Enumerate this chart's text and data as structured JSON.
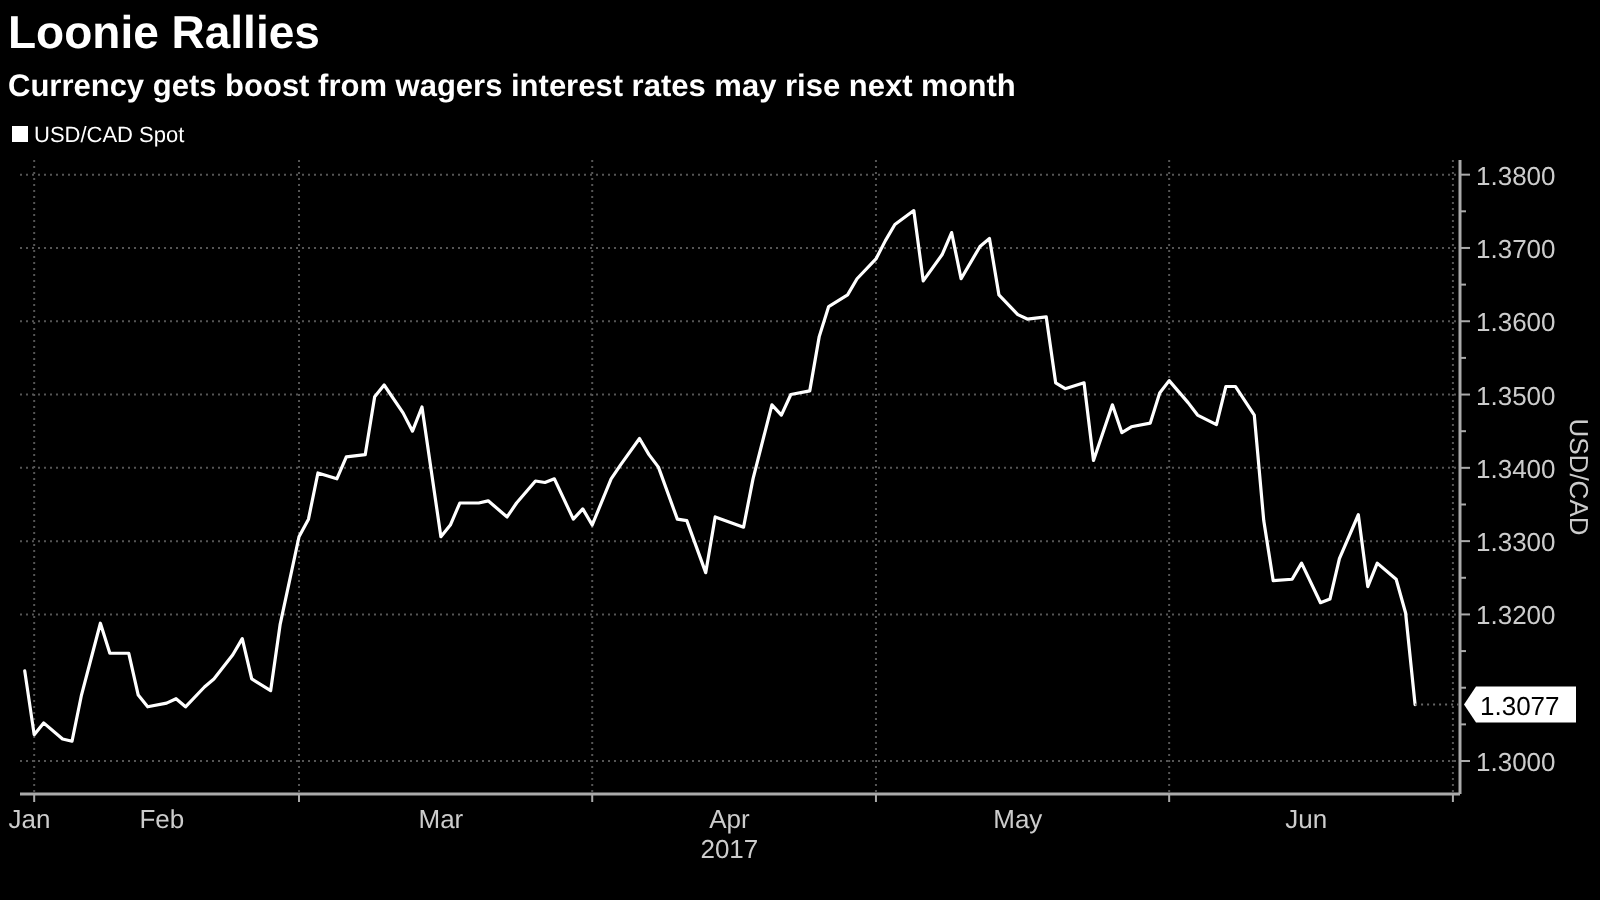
{
  "chart_data": {
    "type": "line",
    "title": "Loonie Rallies",
    "subtitle": "Currency gets boost from wagers interest rates may rise next month",
    "ylabel": "USD/CAD",
    "legend": "top left",
    "grid": true,
    "marker": "none",
    "line_style": "solid",
    "annotations": [
      {
        "text": "1.3077",
        "x": "2017-06-27",
        "y": 1.3077
      }
    ],
    "xlim": [
      "2017-01-30T12:00",
      "2017-07-01T18:00"
    ],
    "xticks": [
      {
        "value": "2017-02-01",
        "label": null
      },
      {
        "value": "2017-03-01",
        "label": null
      },
      {
        "value": "2017-04-01",
        "label": null
      },
      {
        "value": "2017-05-01",
        "label": null
      },
      {
        "value": "2017-06-01",
        "label": null
      },
      {
        "value": "2017-07-01",
        "label": null
      },
      {
        "value": "2017-01-31T12:00",
        "label": "Jan"
      },
      {
        "value": "2017-02-14T12:00",
        "label": "Feb"
      },
      {
        "value": "2017-03-16",
        "label": "Mar"
      },
      {
        "value": "2017-04-15T12:00",
        "label": "Apr\n2017"
      },
      {
        "value": "2017-05-16",
        "label": "May"
      },
      {
        "value": "2017-06-15T12:00",
        "label": "Jun"
      }
    ],
    "ylim": [
      1.2955,
      1.382
    ],
    "yticks": [
      {
        "value": 1.3,
        "label": "1.3000"
      },
      {
        "value": 1.305,
        "label": null
      },
      {
        "value": 1.31,
        "label": null
      },
      {
        "value": 1.315,
        "label": null
      },
      {
        "value": 1.32,
        "label": "1.3200"
      },
      {
        "value": 1.325,
        "label": null
      },
      {
        "value": 1.33,
        "label": "1.3300"
      },
      {
        "value": 1.335,
        "label": null
      },
      {
        "value": 1.34,
        "label": "1.3400"
      },
      {
        "value": 1.345,
        "label": null
      },
      {
        "value": 1.35,
        "label": "1.3500"
      },
      {
        "value": 1.355,
        "label": null
      },
      {
        "value": 1.36,
        "label": "1.3600"
      },
      {
        "value": 1.365,
        "label": null
      },
      {
        "value": 1.37,
        "label": "1.3700"
      },
      {
        "value": 1.375,
        "label": null
      },
      {
        "value": 1.38,
        "label": "1.3800"
      }
    ],
    "x": [
      "2017-01-31",
      "2017-02-01",
      "2017-02-02",
      "2017-02-04",
      "2017-02-05",
      "2017-02-06",
      "2017-02-08",
      "2017-02-09",
      "2017-02-11",
      "2017-02-12",
      "2017-02-13",
      "2017-02-15",
      "2017-02-16",
      "2017-02-17",
      "2017-02-19",
      "2017-02-20",
      "2017-02-22",
      "2017-02-23",
      "2017-02-24",
      "2017-02-26",
      "2017-02-27",
      "2017-03-01",
      "2017-03-02",
      "2017-03-03",
      "2017-03-05",
      "2017-03-06",
      "2017-03-08",
      "2017-03-09",
      "2017-03-10",
      "2017-03-12",
      "2017-03-13",
      "2017-03-14",
      "2017-03-16",
      "2017-03-17",
      "2017-03-18",
      "2017-03-20",
      "2017-03-21",
      "2017-03-23",
      "2017-03-24",
      "2017-03-26",
      "2017-03-27",
      "2017-03-28",
      "2017-03-30",
      "2017-03-31",
      "2017-04-01",
      "2017-04-03",
      "2017-04-04",
      "2017-04-06",
      "2017-04-07",
      "2017-04-08",
      "2017-04-10",
      "2017-04-11",
      "2017-04-13",
      "2017-04-14",
      "2017-04-17",
      "2017-04-18",
      "2017-04-20",
      "2017-04-21",
      "2017-04-22",
      "2017-04-24",
      "2017-04-25",
      "2017-04-26",
      "2017-04-28",
      "2017-04-29",
      "2017-05-01",
      "2017-05-02",
      "2017-05-03",
      "2017-05-05",
      "2017-05-06",
      "2017-05-08",
      "2017-05-09",
      "2017-05-10",
      "2017-05-12",
      "2017-05-13",
      "2017-05-14",
      "2017-05-16",
      "2017-05-17",
      "2017-05-19",
      "2017-05-20",
      "2017-05-21",
      "2017-05-23",
      "2017-05-24",
      "2017-05-26",
      "2017-05-27",
      "2017-05-28",
      "2017-05-30",
      "2017-05-31",
      "2017-06-01",
      "2017-06-03",
      "2017-06-04",
      "2017-06-06",
      "2017-06-07",
      "2017-06-08",
      "2017-06-10",
      "2017-06-11",
      "2017-06-12",
      "2017-06-14",
      "2017-06-15",
      "2017-06-17",
      "2017-06-18",
      "2017-06-19",
      "2017-06-21",
      "2017-06-22",
      "2017-06-23",
      "2017-06-25",
      "2017-06-26",
      "2017-06-27"
    ],
    "series": [
      {
        "name": "USD/CAD Spot",
        "color": "#ffffff",
        "values": [
          1.3123,
          1.3036,
          1.3052,
          1.303,
          1.3027,
          1.309,
          1.3188,
          1.3147,
          1.3147,
          1.309,
          1.3074,
          1.3079,
          1.3085,
          1.3074,
          1.3101,
          1.3112,
          1.3145,
          1.3167,
          1.3112,
          1.3096,
          1.3186,
          1.3306,
          1.333,
          1.3393,
          1.3385,
          1.3415,
          1.3418,
          1.3497,
          1.3513,
          1.3475,
          1.345,
          1.3483,
          1.3306,
          1.3322,
          1.3352,
          1.3352,
          1.3355,
          1.3333,
          1.3352,
          1.3382,
          1.338,
          1.3385,
          1.333,
          1.3344,
          1.3322,
          1.3385,
          1.3404,
          1.344,
          1.3418,
          1.3401,
          1.333,
          1.3328,
          1.3257,
          1.3333,
          1.3319,
          1.3385,
          1.3486,
          1.3472,
          1.35,
          1.3505,
          1.3579,
          1.362,
          1.3636,
          1.3658,
          1.3685,
          1.371,
          1.3732,
          1.3751,
          1.3655,
          1.3691,
          1.3721,
          1.3658,
          1.3702,
          1.3713,
          1.3636,
          1.3609,
          1.3603,
          1.3606,
          1.3516,
          1.3508,
          1.3516,
          1.341,
          1.3486,
          1.3448,
          1.3456,
          1.3461,
          1.3502,
          1.3519,
          1.3489,
          1.3472,
          1.3459,
          1.3511,
          1.3511,
          1.3472,
          1.3328,
          1.3246,
          1.3248,
          1.327,
          1.3216,
          1.3221,
          1.3276,
          1.3336,
          1.3238,
          1.327,
          1.3248,
          1.3202,
          1.3077
        ]
      }
    ]
  }
}
